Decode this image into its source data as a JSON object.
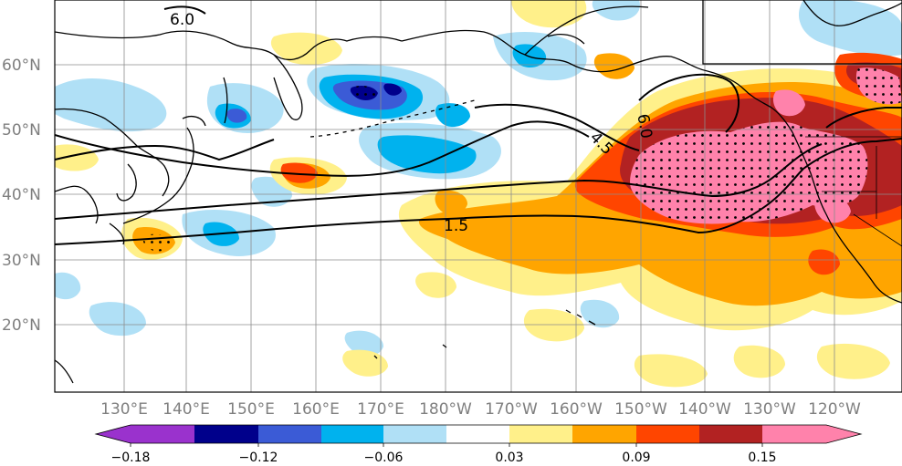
{
  "map": {
    "latitude_labels": [
      "60°N",
      "50°N",
      "40°N",
      "30°N",
      "20°N"
    ],
    "longitude_labels": [
      "130°E",
      "140°E",
      "150°E",
      "160°E",
      "170°E",
      "180°W",
      "170°W",
      "160°W",
      "150°W",
      "140°W",
      "130°W",
      "120°W"
    ],
    "contour_labels": [
      "6.0",
      "4.5",
      "1.5",
      "6.0"
    ],
    "colorbar": {
      "tick_labels": [
        "−0.18",
        "−0.12",
        "−0.06",
        "0.03",
        "0.09",
        "0.15"
      ],
      "colors": [
        "#9a32cd",
        "#00008b",
        "#3b5bd6",
        "#00b2ee",
        "#b0e0f6",
        "#ffffff",
        "#fff08a",
        "#ffa500",
        "#ff4500",
        "#b22222",
        "#ff82ab"
      ]
    }
  }
}
